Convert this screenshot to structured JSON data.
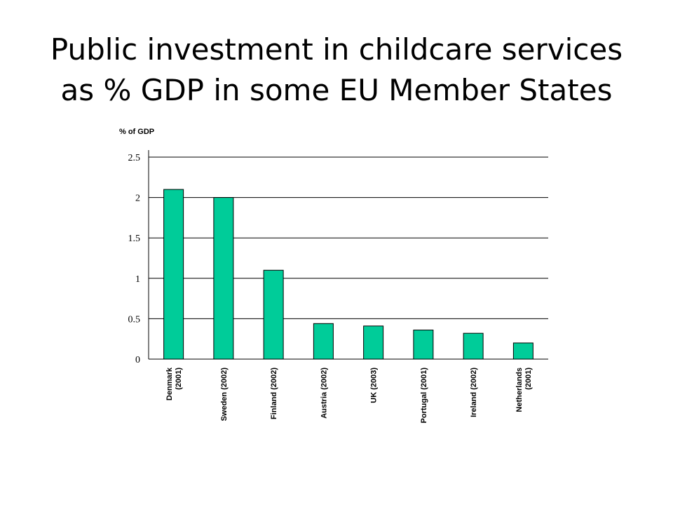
{
  "slide": {
    "title_line1": "Public investment in childcare services",
    "title_line2": "as % GDP in some EU Member States"
  },
  "chart_data": {
    "type": "bar",
    "ylabel": "% of GDP",
    "ylim": [
      0,
      2.5
    ],
    "yticks": [
      {
        "value": 0,
        "label": "0"
      },
      {
        "value": 0.5,
        "label": "0.5"
      },
      {
        "value": 1,
        "label": "1"
      },
      {
        "value": 1.5,
        "label": "1.5"
      },
      {
        "value": 2,
        "label": "2"
      },
      {
        "value": 2.5,
        "label": "2.5"
      }
    ],
    "categories": [
      [
        "Denmark",
        "(2001)"
      ],
      [
        "Sweden (2002)"
      ],
      [
        "Finland (2002)"
      ],
      [
        "Austria (2002)"
      ],
      [
        "UK (2003)"
      ],
      [
        "Portugal (2001)"
      ],
      [
        "Ireland (2002)"
      ],
      [
        "Netherlands",
        "(2001)"
      ]
    ],
    "values": [
      2.1,
      2.0,
      1.1,
      0.44,
      0.41,
      0.36,
      0.32,
      0.2
    ],
    "grid": true,
    "colors": {
      "bar": "#00cc99",
      "bar_stroke": "#000000",
      "grid": "#000000"
    }
  }
}
